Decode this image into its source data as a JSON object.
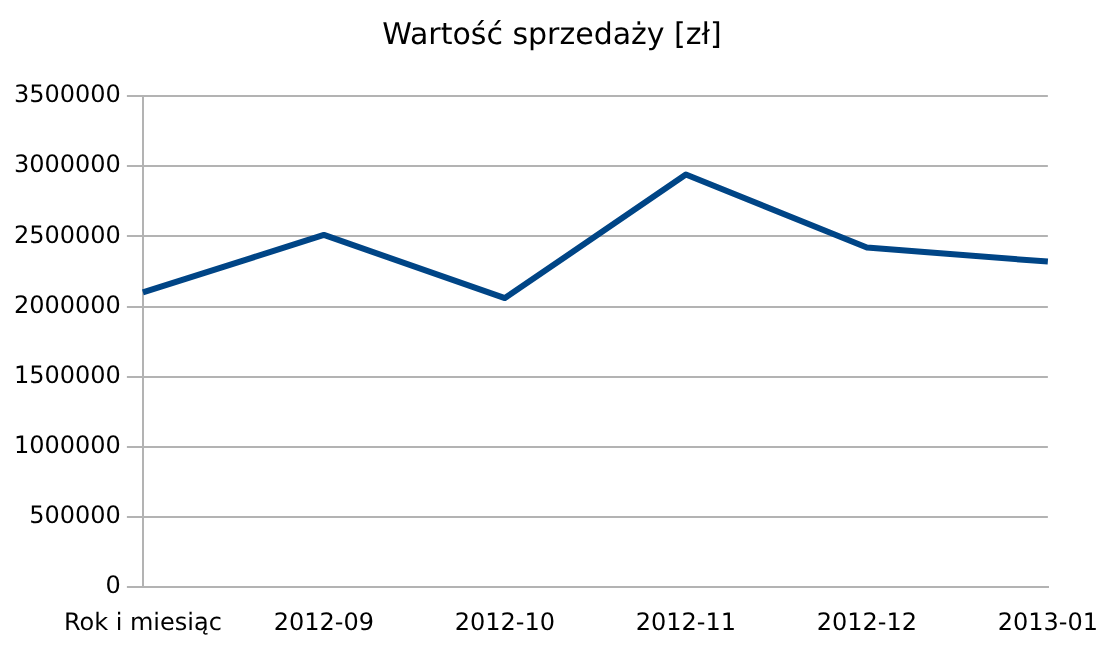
{
  "chart_data": {
    "type": "line",
    "title": "Wartość sprzedaży [zł]",
    "categories": [
      "Rok i miesiąc",
      "2012-09",
      "2012-10",
      "2012-11",
      "2012-12",
      "2013-01"
    ],
    "series": [
      {
        "color": "#004586",
        "values": [
          2100000,
          2510000,
          2060000,
          2940000,
          2420000,
          2320000
        ]
      }
    ],
    "ylim": [
      0,
      3500000
    ],
    "yticks": [
      0,
      500000,
      1000000,
      1500000,
      2000000,
      2500000,
      3000000,
      3500000
    ],
    "grid": "y",
    "legend": false,
    "marker": "none",
    "line_style": "solid"
  }
}
